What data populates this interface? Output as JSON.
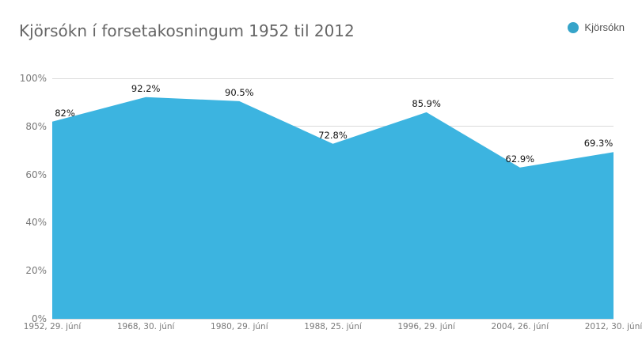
{
  "title": "Kjörsókn í forsetakosningum 1952 til 2012",
  "legend": {
    "label": "Kjörsókn"
  },
  "colors": {
    "area_fill": "#3CB4E0",
    "legend_dot": "#36A4C9",
    "gridline": "#DBDBDB",
    "title_text": "#666666",
    "axis_text": "#7A7A7A",
    "data_label_text": "#121212"
  },
  "chart_data": {
    "type": "area",
    "title": "Kjörsókn í forsetakosningum 1952 til 2012",
    "series_name": "Kjörsókn",
    "categories": [
      "1952, 29. júní",
      "1968, 30. júní",
      "1980, 29. júní",
      "1988, 25. júní",
      "1996, 29. júní",
      "2004, 26. júní",
      "2012, 30. júní"
    ],
    "values": [
      82,
      92.2,
      90.5,
      72.8,
      85.9,
      62.9,
      69.3
    ],
    "value_labels": [
      "82%",
      "92.2%",
      "90.5%",
      "72.8%",
      "85.9%",
      "62.9%",
      "69.3%"
    ],
    "xlabel": "",
    "ylabel": "",
    "ylim": [
      0,
      100
    ],
    "yticks": [
      0,
      20,
      40,
      60,
      80,
      100
    ],
    "ytick_labels": [
      "0%",
      "20%",
      "40%",
      "60%",
      "80%",
      "100%"
    ],
    "grid": true,
    "legend_position": "top-right"
  }
}
